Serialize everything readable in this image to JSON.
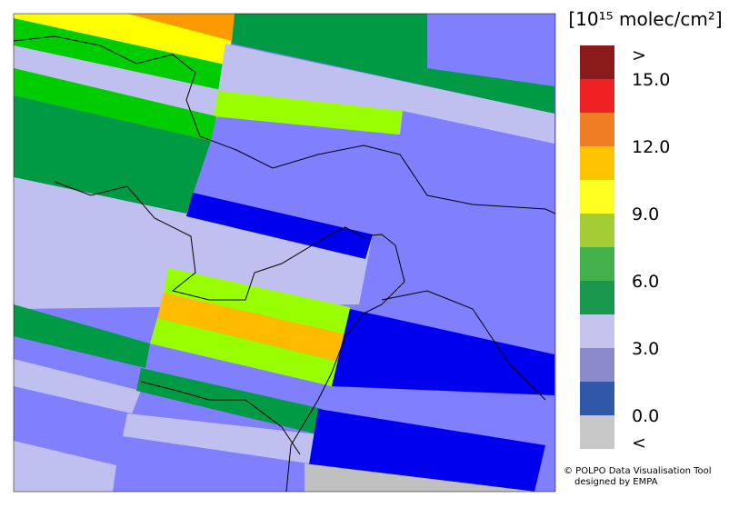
{
  "legend": {
    "title": "[10¹⁵ molec/cm²]",
    "colors": [
      "#8b1a1a",
      "#ee2222",
      "#f07c24",
      "#ffc400",
      "#ffff22",
      "#a4cc34",
      "#44b04c",
      "#17984c",
      "#c4c4ee",
      "#8a8acc",
      "#3158a8",
      "#c8c8c8"
    ],
    "labels": [
      ">",
      "15.0",
      "12.0",
      "9.0",
      "6.0",
      "3.0",
      "0.0",
      "<"
    ]
  },
  "credit": [
    "© POLPO Data Visualisation Tool",
    "designed by EMPA"
  ]
}
